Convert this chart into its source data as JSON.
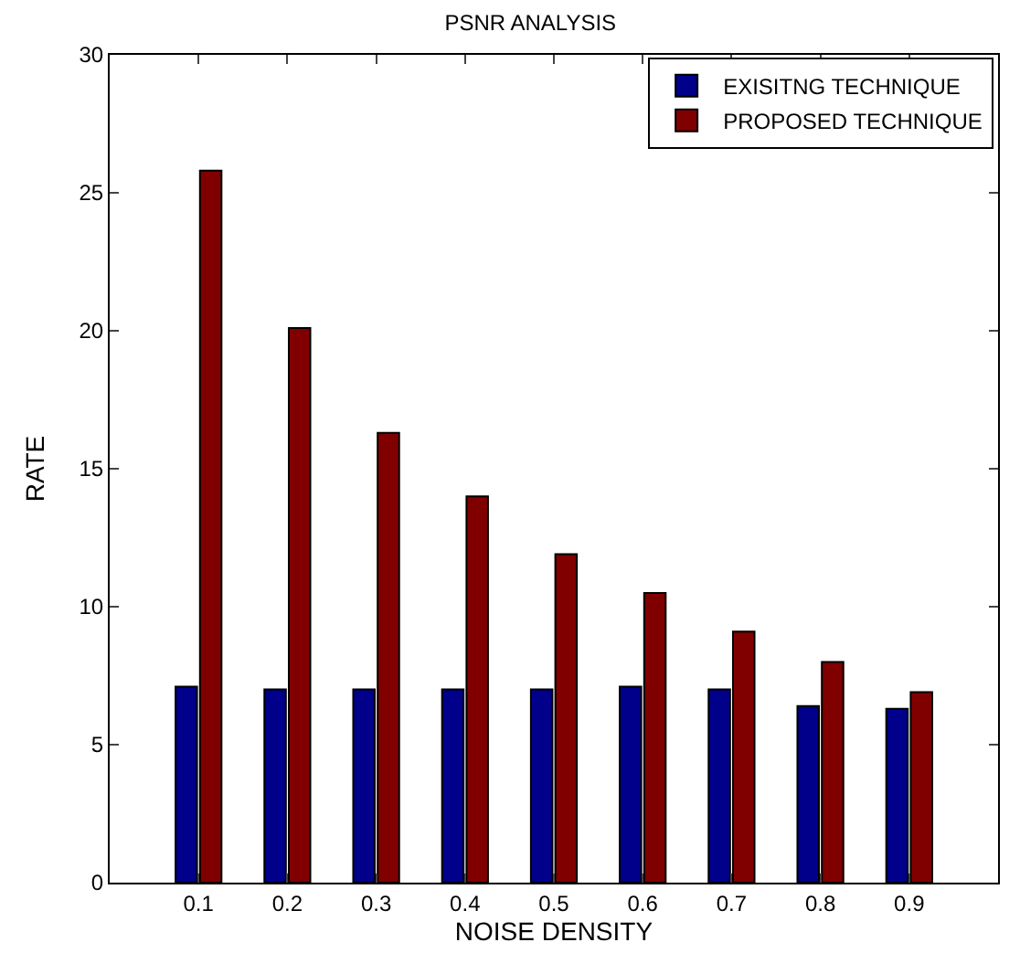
{
  "chart_data": {
    "type": "bar",
    "title": "PSNR ANALYSIS",
    "xlabel": "NOISE DENSITY",
    "ylabel": "RATE",
    "categories": [
      "0.1",
      "0.2",
      "0.3",
      "0.4",
      "0.5",
      "0.6",
      "0.7",
      "0.8",
      "0.9"
    ],
    "series": [
      {
        "name": "EXISITNG TECHNIQUE",
        "color": "#00008b",
        "values": [
          7.1,
          7.0,
          7.0,
          7.0,
          7.0,
          7.1,
          7.0,
          6.4,
          6.3
        ]
      },
      {
        "name": "PROPOSED TECHNIQUE",
        "color": "#800000",
        "values": [
          25.8,
          20.1,
          16.3,
          14.0,
          11.9,
          10.5,
          9.1,
          8.0,
          6.9
        ]
      }
    ],
    "ylim": [
      0,
      30
    ],
    "yticks": [
      0,
      5,
      10,
      15,
      20,
      25,
      30
    ],
    "legend": "top right"
  }
}
